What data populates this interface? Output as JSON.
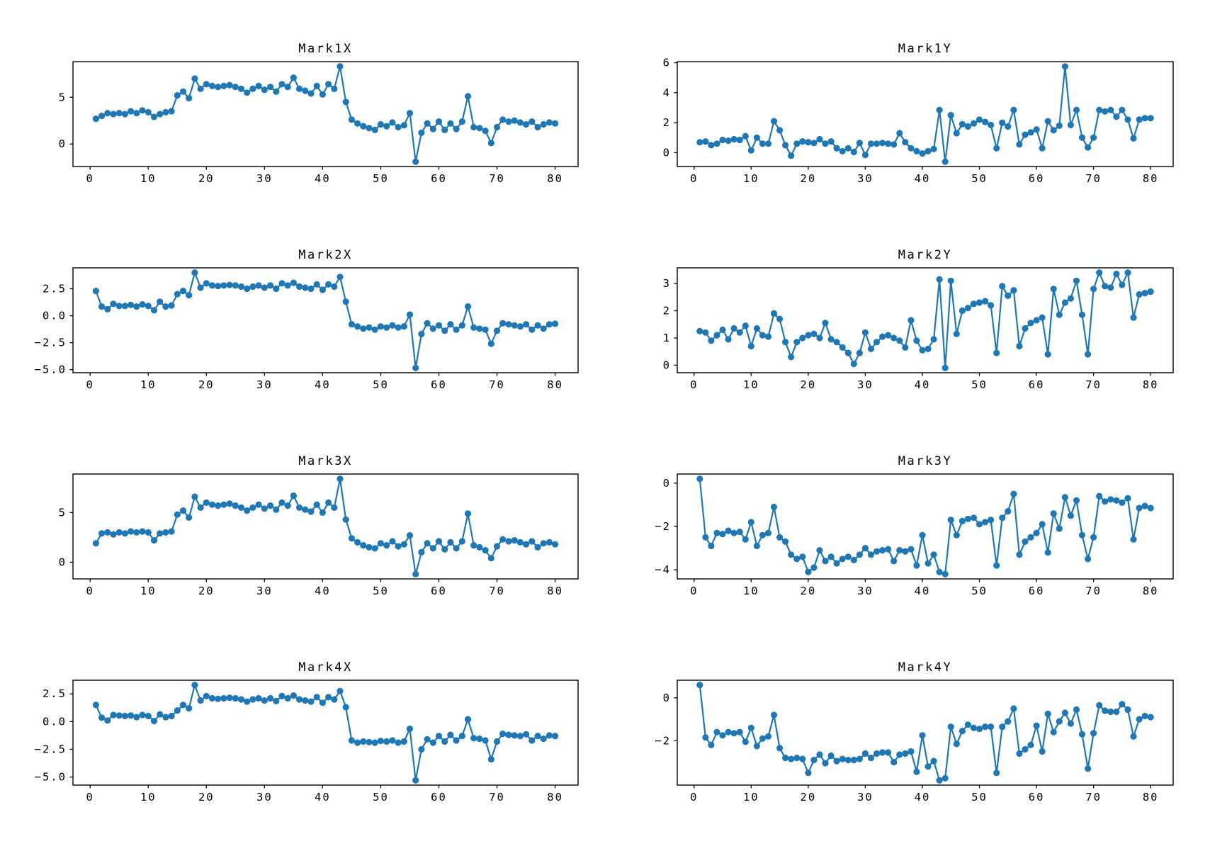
{
  "figure": {
    "background": "#ffffff",
    "accent_color": "#1f77b4",
    "axis_color": "#000000",
    "text_color": "#000000"
  },
  "chart_data": {
    "type": "line",
    "marker": "circle",
    "marker_color": "#1f77b4",
    "line_color": "#1f77b4",
    "grid": false,
    "legend": "none",
    "layout": "4 rows x 2 columns",
    "x": [
      1,
      2,
      3,
      4,
      5,
      6,
      7,
      8,
      9,
      10,
      11,
      12,
      13,
      14,
      15,
      16,
      17,
      18,
      19,
      20,
      21,
      22,
      23,
      24,
      25,
      26,
      27,
      28,
      29,
      30,
      31,
      32,
      33,
      34,
      35,
      36,
      37,
      38,
      39,
      40,
      41,
      42,
      43,
      44,
      45,
      46,
      47,
      48,
      49,
      50,
      51,
      52,
      53,
      54,
      55,
      56,
      57,
      58,
      59,
      60,
      61,
      62,
      63,
      64,
      65,
      66,
      67,
      68,
      69,
      70,
      71,
      72,
      73,
      74,
      75,
      76,
      77,
      78,
      79,
      80
    ],
    "xlim": [
      -2.95,
      83.95
    ],
    "xticks": {
      "values": [
        0,
        10,
        20,
        30,
        40,
        50,
        60,
        70,
        80
      ],
      "labels": [
        "0",
        "10",
        "20",
        "30",
        "40",
        "50",
        "60",
        "70",
        "80"
      ]
    },
    "charts": [
      {
        "title": "Mark1X",
        "ylim": [
          -2.41,
          8.81
        ],
        "yticks": {
          "values": [
            0,
            5
          ],
          "labels": [
            "0",
            "5"
          ]
        },
        "values": [
          2.7,
          3.0,
          3.3,
          3.2,
          3.3,
          3.2,
          3.5,
          3.3,
          3.6,
          3.4,
          2.9,
          3.2,
          3.4,
          3.5,
          5.2,
          5.6,
          4.9,
          7.0,
          5.9,
          6.4,
          6.2,
          6.1,
          6.2,
          6.3,
          6.1,
          5.9,
          5.5,
          5.9,
          6.2,
          5.8,
          6.1,
          5.6,
          6.4,
          6.1,
          7.1,
          5.9,
          5.7,
          5.4,
          6.2,
          5.3,
          6.4,
          5.9,
          8.3,
          4.5,
          2.6,
          2.2,
          1.9,
          1.7,
          1.5,
          2.1,
          1.9,
          2.3,
          1.8,
          2.0,
          3.3,
          -1.9,
          1.2,
          2.2,
          1.6,
          2.4,
          1.5,
          2.2,
          1.6,
          2.4,
          5.1,
          1.8,
          1.7,
          1.4,
          0.1,
          1.8,
          2.6,
          2.4,
          2.5,
          2.3,
          2.1,
          2.4,
          1.8,
          2.1,
          2.3,
          2.2
        ]
      },
      {
        "title": "Mark1Y",
        "ylim": [
          -0.92,
          6.07
        ],
        "yticks": {
          "values": [
            0,
            2,
            4,
            6
          ],
          "labels": [
            "0",
            "2",
            "4",
            "6"
          ]
        },
        "values": [
          0.7,
          0.75,
          0.5,
          0.6,
          0.85,
          0.8,
          0.9,
          0.85,
          1.1,
          0.15,
          1.0,
          0.6,
          0.6,
          2.1,
          1.5,
          0.5,
          -0.2,
          0.6,
          0.75,
          0.7,
          0.65,
          0.9,
          0.6,
          0.75,
          0.3,
          0.1,
          0.3,
          0.05,
          0.65,
          -0.15,
          0.6,
          0.6,
          0.65,
          0.6,
          0.55,
          1.3,
          0.7,
          0.3,
          0.1,
          -0.05,
          0.1,
          0.25,
          2.85,
          -0.6,
          2.5,
          1.3,
          1.9,
          1.75,
          1.95,
          2.2,
          2.05,
          1.85,
          0.3,
          2.0,
          1.75,
          2.85,
          0.55,
          1.2,
          1.35,
          1.55,
          0.3,
          2.1,
          1.5,
          1.8,
          5.75,
          1.85,
          2.85,
          1.0,
          0.35,
          1.0,
          2.85,
          2.75,
          2.85,
          2.4,
          2.85,
          2.2,
          0.95,
          2.2,
          2.3,
          2.3
        ]
      },
      {
        "title": "Mark2X",
        "ylim": [
          -5.29,
          4.44
        ],
        "yticks": {
          "values": [
            2.5,
            0.0,
            -2.5,
            -5.0
          ],
          "labels": [
            "2.5",
            "0.0",
            "−2.5",
            "−5.0"
          ]
        },
        "values": [
          2.3,
          0.85,
          0.6,
          1.1,
          0.9,
          0.9,
          1.0,
          0.85,
          1.05,
          0.9,
          0.5,
          1.3,
          0.85,
          0.95,
          2.0,
          2.3,
          1.9,
          4.0,
          2.6,
          3.0,
          2.8,
          2.75,
          2.8,
          2.85,
          2.8,
          2.7,
          2.5,
          2.7,
          2.8,
          2.6,
          2.8,
          2.5,
          3.0,
          2.8,
          3.05,
          2.7,
          2.6,
          2.5,
          2.9,
          2.4,
          2.9,
          2.7,
          3.6,
          1.3,
          -0.8,
          -1.0,
          -1.2,
          -1.1,
          -1.3,
          -1.0,
          -1.1,
          -0.9,
          -1.1,
          -1.0,
          0.1,
          -4.85,
          -1.7,
          -0.7,
          -1.2,
          -0.9,
          -1.4,
          -0.8,
          -1.3,
          -0.9,
          0.85,
          -1.1,
          -1.2,
          -1.3,
          -2.6,
          -1.4,
          -0.7,
          -0.8,
          -0.9,
          -1.0,
          -0.8,
          -1.3,
          -0.9,
          -1.2,
          -0.8,
          -0.75
        ]
      },
      {
        "title": "Mark2Y",
        "ylim": [
          -0.275,
          3.575
        ],
        "yticks": {
          "values": [
            0,
            1,
            2,
            3
          ],
          "labels": [
            "0",
            "1",
            "2",
            "3"
          ]
        },
        "values": [
          1.25,
          1.2,
          0.9,
          1.1,
          1.3,
          0.95,
          1.35,
          1.2,
          1.45,
          0.7,
          1.35,
          1.1,
          1.05,
          1.9,
          1.7,
          0.85,
          0.3,
          0.85,
          1.0,
          1.1,
          1.15,
          1.0,
          1.55,
          0.95,
          0.85,
          0.65,
          0.45,
          0.05,
          0.45,
          1.2,
          0.6,
          0.85,
          1.05,
          1.1,
          1.0,
          0.9,
          0.65,
          1.65,
          0.9,
          0.55,
          0.6,
          0.95,
          3.15,
          -0.1,
          3.1,
          1.15,
          2.0,
          2.1,
          2.25,
          2.3,
          2.35,
          2.2,
          0.45,
          2.9,
          2.55,
          2.75,
          0.7,
          1.35,
          1.55,
          1.65,
          1.75,
          0.4,
          2.8,
          1.85,
          2.3,
          2.45,
          3.1,
          1.85,
          0.4,
          2.8,
          3.4,
          2.9,
          2.85,
          3.35,
          2.95,
          3.4,
          1.75,
          2.6,
          2.65,
          2.7
        ]
      },
      {
        "title": "Mark3X",
        "ylim": [
          -1.68,
          8.88
        ],
        "yticks": {
          "values": [
            0,
            5
          ],
          "labels": [
            "0",
            "5"
          ]
        },
        "values": [
          1.9,
          2.9,
          3.0,
          2.8,
          3.0,
          2.9,
          3.1,
          3.0,
          3.1,
          3.0,
          2.2,
          2.9,
          3.0,
          3.1,
          4.8,
          5.2,
          4.5,
          6.6,
          5.5,
          6.0,
          5.8,
          5.7,
          5.8,
          5.9,
          5.7,
          5.5,
          5.2,
          5.5,
          5.8,
          5.4,
          5.7,
          5.3,
          6.0,
          5.7,
          6.7,
          5.5,
          5.3,
          5.1,
          5.8,
          5.0,
          6.0,
          5.5,
          8.4,
          4.3,
          2.4,
          2.0,
          1.7,
          1.5,
          1.4,
          1.9,
          1.7,
          2.1,
          1.6,
          1.8,
          2.7,
          -1.2,
          1.0,
          1.9,
          1.4,
          2.1,
          1.3,
          2.0,
          1.4,
          2.1,
          4.9,
          1.7,
          1.5,
          1.2,
          0.4,
          1.6,
          2.3,
          2.1,
          2.2,
          2.0,
          1.8,
          2.1,
          1.5,
          1.9,
          2.0,
          1.8
        ]
      },
      {
        "title": "Mark3Y",
        "ylim": [
          -4.42,
          0.42
        ],
        "yticks": {
          "values": [
            0,
            -2,
            -4
          ],
          "labels": [
            "0",
            "−2",
            "−4"
          ]
        },
        "values": [
          0.2,
          -2.5,
          -2.9,
          -2.3,
          -2.35,
          -2.2,
          -2.3,
          -2.25,
          -2.6,
          -1.8,
          -2.9,
          -2.4,
          -2.3,
          -1.1,
          -2.5,
          -2.7,
          -3.3,
          -3.5,
          -3.4,
          -4.1,
          -3.9,
          -3.1,
          -3.6,
          -3.4,
          -3.7,
          -3.5,
          -3.4,
          -3.55,
          -3.3,
          -3.0,
          -3.3,
          -3.15,
          -3.1,
          -3.05,
          -3.6,
          -3.1,
          -3.15,
          -3.05,
          -3.8,
          -2.4,
          -3.7,
          -3.3,
          -4.1,
          -4.2,
          -1.7,
          -2.4,
          -1.75,
          -1.65,
          -1.6,
          -1.9,
          -1.8,
          -1.7,
          -3.8,
          -1.6,
          -1.3,
          -0.5,
          -3.3,
          -2.7,
          -2.5,
          -2.3,
          -1.9,
          -3.2,
          -1.4,
          -2.1,
          -0.65,
          -1.5,
          -0.8,
          -2.4,
          -3.5,
          -2.5,
          -0.6,
          -0.85,
          -0.75,
          -0.8,
          -0.9,
          -0.7,
          -2.6,
          -1.15,
          -1.05,
          -1.15
        ]
      },
      {
        "title": "Mark4X",
        "ylim": [
          -5.73,
          3.73
        ],
        "yticks": {
          "values": [
            2.5,
            0.0,
            -2.5,
            -5.0
          ],
          "labels": [
            "2.5",
            "0.0",
            "−2.5",
            "−5.0"
          ]
        },
        "values": [
          1.5,
          0.35,
          0.1,
          0.6,
          0.55,
          0.5,
          0.55,
          0.4,
          0.6,
          0.5,
          0.05,
          0.65,
          0.4,
          0.5,
          1.0,
          1.5,
          1.2,
          3.3,
          1.9,
          2.3,
          2.1,
          2.05,
          2.1,
          2.15,
          2.1,
          2.0,
          1.8,
          2.0,
          2.1,
          1.9,
          2.1,
          1.85,
          2.3,
          2.1,
          2.35,
          2.0,
          1.9,
          1.8,
          2.2,
          1.7,
          2.2,
          2.0,
          2.75,
          1.3,
          -1.7,
          -1.9,
          -1.8,
          -1.85,
          -1.9,
          -1.75,
          -1.8,
          -1.7,
          -1.9,
          -1.8,
          -0.65,
          -5.3,
          -2.5,
          -1.6,
          -1.9,
          -1.3,
          -1.8,
          -1.2,
          -1.7,
          -1.3,
          0.2,
          -1.5,
          -1.55,
          -1.7,
          -3.4,
          -1.8,
          -1.1,
          -1.2,
          -1.25,
          -1.3,
          -1.15,
          -1.7,
          -1.3,
          -1.55,
          -1.25,
          -1.3
        ]
      },
      {
        "title": "Mark4Y",
        "ylim": [
          -4.07,
          0.82
        ],
        "yticks": {
          "values": [
            0,
            -2
          ],
          "labels": [
            "0",
            "−2"
          ]
        },
        "values": [
          0.6,
          -1.85,
          -2.2,
          -1.6,
          -1.75,
          -1.6,
          -1.65,
          -1.6,
          -2.05,
          -1.4,
          -2.25,
          -1.9,
          -1.8,
          -0.8,
          -2.35,
          -2.8,
          -2.85,
          -2.8,
          -2.85,
          -3.5,
          -2.9,
          -2.65,
          -3.05,
          -2.7,
          -2.95,
          -2.85,
          -2.9,
          -2.9,
          -2.85,
          -2.6,
          -2.8,
          -2.6,
          -2.55,
          -2.55,
          -3.0,
          -2.65,
          -2.6,
          -2.5,
          -3.45,
          -1.75,
          -3.2,
          -2.95,
          -3.85,
          -3.75,
          -1.35,
          -2.15,
          -1.55,
          -1.25,
          -1.4,
          -1.45,
          -1.35,
          -1.35,
          -3.5,
          -1.35,
          -1.1,
          -0.5,
          -2.6,
          -2.4,
          -2.2,
          -1.3,
          -2.5,
          -0.75,
          -1.6,
          -1.1,
          -0.7,
          -1.2,
          -0.55,
          -1.7,
          -3.3,
          -1.65,
          -0.35,
          -0.6,
          -0.65,
          -0.65,
          -0.3,
          -0.55,
          -1.8,
          -1.0,
          -0.85,
          -0.9
        ]
      }
    ]
  }
}
